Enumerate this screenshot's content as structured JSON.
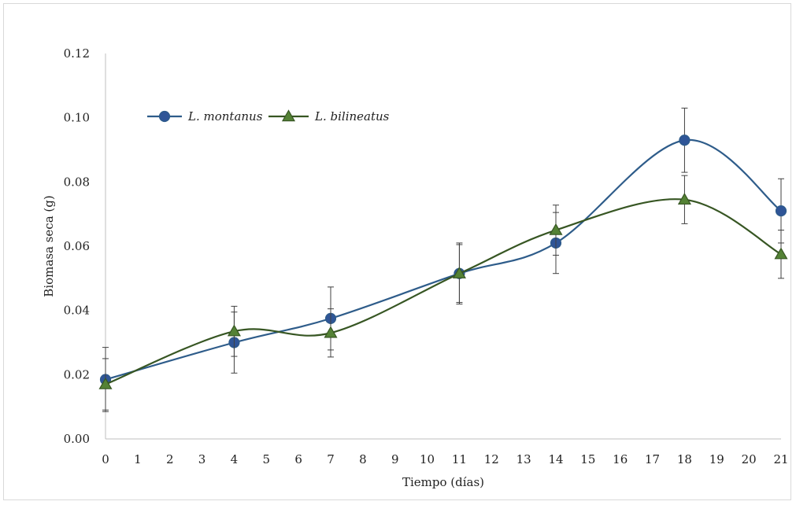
{
  "chart_data": {
    "type": "line",
    "title": "",
    "xlabel": "Tiempo (días)",
    "ylabel": "Biomasa  seca (g)",
    "xlim": [
      0,
      21
    ],
    "ylim": [
      0,
      0.12
    ],
    "x_ticks": [
      "0",
      "1",
      "2",
      "3",
      "4",
      "5",
      "6",
      "7",
      "8",
      "9",
      "10",
      "11",
      "12",
      "13",
      "14",
      "15",
      "16",
      "17",
      "18",
      "19",
      "20",
      "21"
    ],
    "y_ticks": [
      "0.00",
      "0.02",
      "0.04",
      "0.06",
      "0.08",
      "0.10",
      "0.12"
    ],
    "grid": false,
    "legend_position": "top-left",
    "smoothed": true,
    "series": [
      {
        "name": "L. montanus",
        "marker": "circle",
        "color": "#2e5c8a",
        "marker_color": "#2f5597",
        "x": [
          0,
          4,
          7,
          11,
          14,
          18,
          21
        ],
        "y": [
          0.0185,
          0.03,
          0.0375,
          0.0515,
          0.061,
          0.093,
          0.071
        ],
        "error": [
          0.01,
          0.0095,
          0.0098,
          0.0095,
          0.0095,
          0.01,
          0.01
        ]
      },
      {
        "name": "L. bilineatus",
        "marker": "triangle",
        "color": "#375623",
        "marker_color": "#548235",
        "x": [
          0,
          4,
          7,
          11,
          14,
          18,
          21
        ],
        "y": [
          0.017,
          0.0335,
          0.033,
          0.0515,
          0.065,
          0.0745,
          0.0575
        ],
        "error": [
          0.008,
          0.0078,
          0.0075,
          0.009,
          0.0078,
          0.0075,
          0.0075
        ]
      }
    ]
  }
}
